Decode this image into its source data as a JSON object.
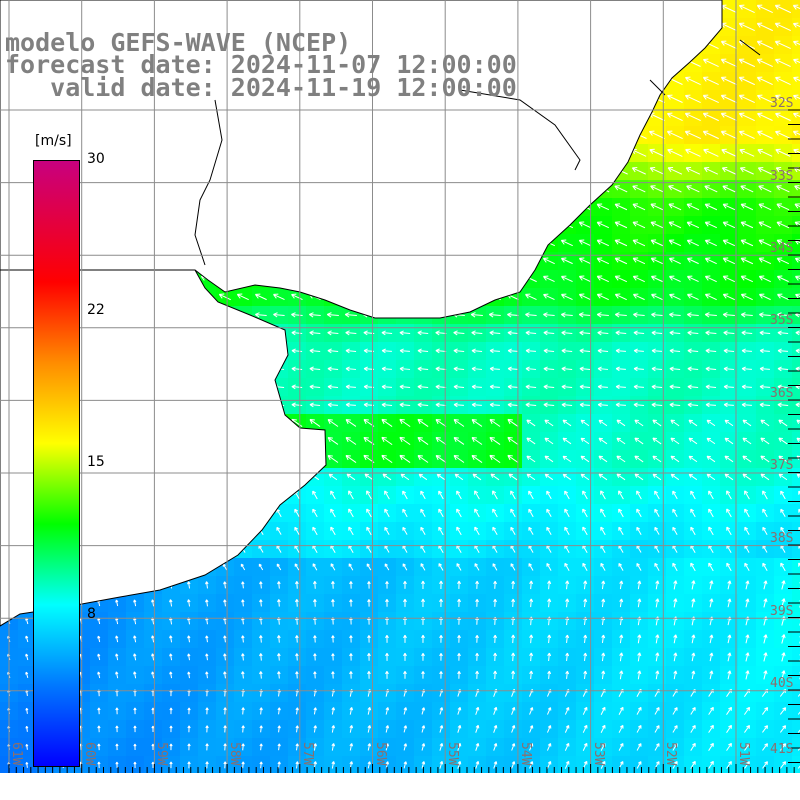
{
  "header": {
    "model": "modelo GEFS-WAVE (NCEP)",
    "forecast": "forecast date: 2024-11-07 12:00:00",
    "valid": "   valid date: 2024-11-19 12:00:00"
  },
  "colorbar": {
    "unit": "[m/s]",
    "ticks": [
      {
        "label": "30",
        "value": 30
      },
      {
        "label": "22",
        "value": 22
      },
      {
        "label": "15",
        "value": 15
      },
      {
        "label": "8",
        "value": 8
      }
    ],
    "stops": [
      [
        0,
        "#0000ff"
      ],
      [
        4,
        "#0078ff"
      ],
      [
        8,
        "#00ffff"
      ],
      [
        12,
        "#00ff00"
      ],
      [
        16,
        "#ffff00"
      ],
      [
        20,
        "#ff8c00"
      ],
      [
        24,
        "#ff0000"
      ],
      [
        30,
        "#c8007f"
      ]
    ]
  },
  "grid": {
    "latitudes": [
      "32S",
      "33S",
      "34S",
      "35S",
      "36S",
      "37S",
      "38S",
      "39S",
      "40S",
      "41S"
    ],
    "longitudes": [
      "61W",
      "60W",
      "59W",
      "58W",
      "57W",
      "56W",
      "55W",
      "54W",
      "53W",
      "52W",
      "51W"
    ]
  },
  "colors": {
    "land": "#ffffff",
    "coast": "#000000",
    "grid": "#8c8c8c",
    "label": "#8a6f6f",
    "title": "#808080"
  }
}
